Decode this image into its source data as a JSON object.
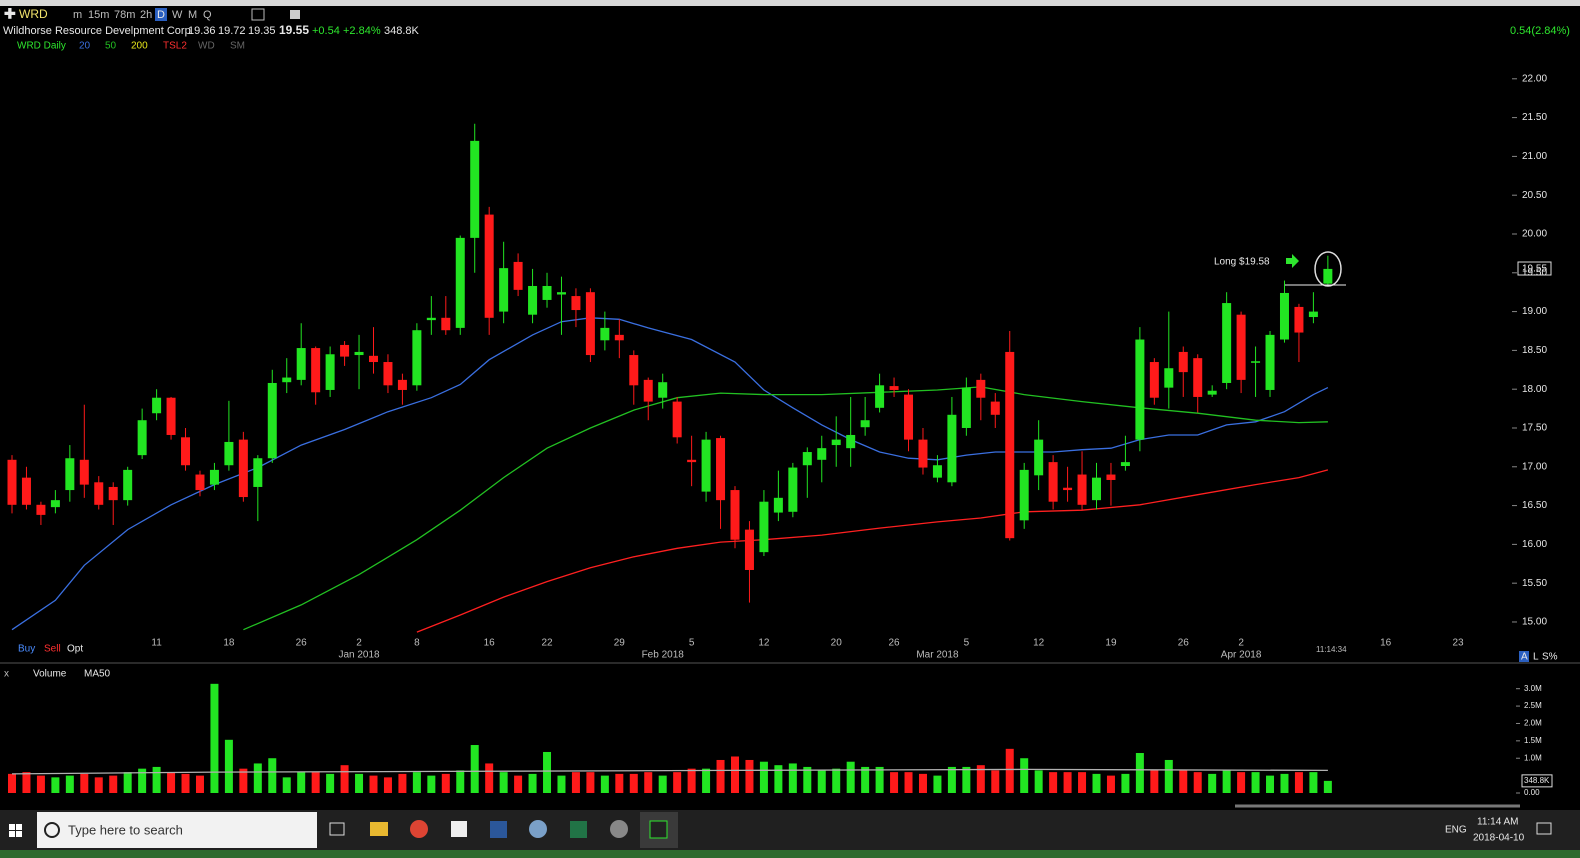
{
  "toolbar": {
    "symbol": "WRD",
    "timeframes": [
      "m",
      "15m",
      "78m",
      "2h",
      "D",
      "W",
      "M",
      "Q"
    ]
  },
  "quote": {
    "name": "Wildhorse Resource Develpment Corp",
    "change": "+0.54",
    "change_pct": "+2.84%",
    "right_change": "0.54(2.84%)"
  },
  "order_buttons": [
    "Buy",
    "Sell",
    "Opt"
  ],
  "scale_buttons": [
    "A",
    "L",
    "S%"
  ],
  "taskbar": {
    "search": "Type here to search",
    "language": "ENG",
    "time": "11:14 AM",
    "date": "2018-04-10"
  },
  "chart_data": [
    {
      "type": "candlestick",
      "title": "WRD Daily",
      "up_color": "#22e522",
      "down_color": "#ff1a1a",
      "indicators": [
        "TSL2",
        "WD",
        "SM"
      ],
      "annotation": "Long $19.58",
      "time_label": "11:14:34",
      "categories": [
        null,
        null,
        null,
        null,
        null,
        null,
        null,
        null,
        null,
        null,
        "11",
        null,
        null,
        null,
        null,
        "18",
        null,
        null,
        null,
        null,
        "26",
        null,
        null,
        null,
        "2",
        null,
        null,
        null,
        "8",
        null,
        null,
        null,
        null,
        "16",
        null,
        null,
        null,
        "22",
        null,
        null,
        null,
        null,
        "29",
        null,
        null,
        null,
        null,
        "5",
        null,
        null,
        null,
        null,
        "12",
        null,
        null,
        null,
        null,
        "20",
        null,
        null,
        null,
        "26",
        null,
        null,
        null,
        null,
        "5",
        null,
        null,
        null,
        null,
        "12",
        null,
        null,
        null,
        null,
        "19",
        null,
        null,
        null,
        null,
        "26",
        null,
        null,
        null,
        "2",
        null,
        null,
        null,
        null,
        null,
        null,
        null,
        null,
        null,
        "16",
        null,
        null,
        null,
        null,
        "23"
      ],
      "month_labels": [
        null,
        null,
        null,
        null,
        null,
        null,
        null,
        null,
        null,
        null,
        null,
        null,
        null,
        null,
        null,
        null,
        null,
        null,
        null,
        null,
        null,
        null,
        null,
        null,
        "Jan 2018",
        null,
        null,
        null,
        null,
        null,
        null,
        null,
        null,
        null,
        null,
        null,
        null,
        null,
        null,
        null,
        null,
        null,
        null,
        null,
        null,
        "Feb 2018",
        null,
        null,
        null,
        null,
        null,
        null,
        null,
        null,
        null,
        null,
        null,
        null,
        null,
        null,
        null,
        null,
        null,
        null,
        "Mar 2018",
        null,
        null,
        null,
        null,
        null,
        null,
        null,
        null,
        null,
        null,
        null,
        null,
        null,
        null,
        null,
        null,
        null,
        null,
        null,
        null,
        "Apr 2018",
        null,
        null,
        null,
        null,
        null,
        null,
        null,
        null,
        null,
        null,
        null,
        null,
        null,
        null,
        null
      ],
      "open": [
        17.09,
        16.86,
        16.51,
        16.48,
        16.7,
        17.09,
        16.8,
        16.74,
        16.57,
        17.15,
        17.69,
        17.89,
        17.38,
        16.9,
        16.77,
        17.02,
        17.35,
        16.74,
        17.11,
        18.09,
        18.12,
        18.53,
        17.99,
        18.57,
        18.44,
        18.43,
        18.35,
        18.12,
        18.05,
        18.89,
        18.92,
        18.79,
        19.95,
        20.25,
        19.0,
        19.64,
        18.96,
        19.15,
        19.22,
        19.2,
        19.25,
        18.63,
        18.7,
        18.44,
        18.12,
        17.89,
        17.84,
        17.09,
        16.68,
        17.37,
        16.7,
        16.19,
        15.9,
        16.41,
        16.42,
        17.02,
        17.09,
        17.28,
        17.24,
        17.51,
        17.76,
        18.04,
        17.93,
        17.35,
        16.86,
        16.8,
        17.5,
        18.12,
        17.84,
        18.48,
        16.31,
        16.89,
        17.06,
        16.73,
        16.9,
        16.57,
        16.9,
        17.01,
        17.35,
        18.35,
        18.02,
        18.48,
        18.4,
        17.93,
        18.08,
        18.96,
        18.34,
        17.99,
        18.64,
        19.06,
        18.93,
        19.36,
        null,
        null,
        null,
        null,
        null,
        null,
        null,
        null,
        null
      ],
      "high": [
        17.15,
        17.0,
        16.55,
        16.7,
        17.28,
        17.8,
        16.88,
        16.8,
        17.0,
        17.75,
        18.0,
        17.9,
        17.5,
        16.95,
        17.05,
        17.85,
        17.45,
        17.15,
        18.25,
        18.4,
        18.85,
        18.55,
        18.55,
        18.62,
        18.7,
        18.8,
        18.45,
        18.2,
        18.85,
        19.2,
        19.2,
        19.98,
        21.42,
        20.35,
        19.9,
        19.75,
        19.55,
        19.5,
        19.45,
        19.3,
        19.3,
        19.0,
        18.9,
        18.5,
        18.15,
        18.2,
        17.9,
        17.4,
        17.45,
        17.4,
        16.75,
        16.3,
        16.7,
        16.95,
        17.05,
        17.25,
        17.4,
        17.65,
        17.9,
        17.9,
        18.2,
        18.15,
        18.0,
        17.5,
        17.15,
        17.9,
        18.15,
        18.2,
        17.95,
        18.75,
        17.05,
        17.6,
        17.15,
        17.0,
        17.2,
        17.05,
        17.05,
        17.4,
        18.8,
        18.4,
        19.0,
        18.55,
        18.45,
        18.05,
        19.25,
        19.0,
        18.55,
        18.75,
        19.4,
        19.1,
        19.25,
        19.72,
        null,
        null,
        null,
        null,
        null,
        null,
        null,
        null,
        null
      ],
      "low": [
        16.4,
        16.45,
        16.25,
        16.4,
        16.55,
        16.6,
        16.45,
        16.25,
        16.5,
        17.1,
        17.6,
        17.35,
        16.95,
        16.62,
        16.7,
        16.95,
        16.55,
        16.3,
        17.05,
        17.95,
        18.05,
        17.8,
        17.9,
        18.3,
        18.0,
        18.2,
        17.95,
        17.8,
        17.98,
        18.7,
        18.7,
        18.7,
        19.5,
        18.7,
        18.85,
        19.2,
        18.85,
        19.05,
        18.7,
        18.8,
        18.35,
        18.5,
        18.4,
        17.8,
        17.6,
        17.75,
        17.3,
        16.75,
        16.55,
        16.2,
        15.95,
        15.25,
        15.85,
        16.3,
        16.35,
        16.6,
        16.8,
        17.0,
        17.0,
        17.4,
        17.7,
        17.9,
        17.2,
        16.9,
        16.8,
        16.75,
        17.4,
        17.6,
        17.5,
        16.05,
        16.2,
        16.7,
        16.45,
        16.55,
        16.45,
        16.45,
        16.5,
        16.95,
        17.2,
        17.8,
        17.75,
        17.9,
        17.7,
        17.9,
        18.0,
        17.95,
        17.9,
        17.9,
        18.6,
        18.35,
        18.85,
        19.35,
        null,
        null,
        null,
        null,
        null,
        null,
        null,
        null,
        null
      ],
      "close": [
        16.51,
        16.51,
        16.38,
        16.57,
        17.11,
        16.77,
        16.51,
        16.57,
        16.96,
        17.6,
        17.89,
        17.41,
        17.02,
        16.7,
        16.96,
        17.32,
        16.61,
        17.11,
        18.08,
        18.15,
        18.53,
        17.96,
        18.45,
        18.42,
        18.48,
        18.35,
        18.05,
        17.99,
        18.76,
        18.92,
        18.76,
        19.95,
        21.2,
        18.92,
        19.56,
        19.28,
        19.33,
        19.33,
        19.25,
        19.02,
        18.44,
        18.79,
        18.63,
        18.05,
        17.84,
        18.09,
        17.38,
        17.06,
        17.35,
        16.57,
        16.06,
        15.67,
        16.55,
        16.6,
        16.99,
        17.19,
        17.24,
        17.35,
        17.41,
        17.6,
        18.05,
        17.99,
        17.35,
        16.99,
        17.02,
        17.67,
        18.02,
        17.89,
        17.67,
        16.08,
        16.96,
        17.35,
        16.55,
        16.7,
        16.51,
        16.86,
        16.83,
        17.06,
        18.64,
        17.89,
        18.27,
        18.22,
        17.9,
        17.98,
        19.11,
        18.12,
        18.36,
        18.7,
        19.24,
        18.73,
        19.0,
        19.55,
        null,
        null,
        null,
        null,
        null,
        null,
        null,
        null,
        null
      ],
      "ma": [
        {
          "name": "20",
          "color": "#3a6fe0",
          "x": [
            0,
            3,
            5,
            8,
            11,
            14,
            17,
            20,
            23,
            26,
            29,
            31,
            33,
            36,
            38,
            40,
            42,
            44,
            47,
            50,
            52,
            54,
            56,
            58,
            60,
            62,
            64,
            66,
            68,
            70,
            72,
            74,
            76,
            78,
            80,
            82,
            84,
            86,
            88,
            90,
            91
          ],
          "values": [
            14.9,
            15.28,
            15.73,
            16.19,
            16.51,
            16.77,
            16.99,
            17.28,
            17.48,
            17.71,
            17.89,
            18.06,
            18.38,
            18.7,
            18.87,
            18.92,
            18.9,
            18.79,
            18.64,
            18.35,
            17.99,
            17.76,
            17.54,
            17.35,
            17.19,
            17.11,
            17.09,
            17.15,
            17.19,
            17.19,
            17.19,
            17.22,
            17.24,
            17.35,
            17.41,
            17.41,
            17.54,
            17.58,
            17.71,
            17.93,
            18.02
          ]
        },
        {
          "name": "50",
          "color": "#22c022",
          "x": [
            16,
            20,
            24,
            28,
            31,
            34,
            37,
            40,
            43,
            46,
            49,
            52,
            56,
            60,
            64,
            67,
            70,
            74,
            78,
            82,
            86,
            89,
            91
          ],
          "values": [
            14.9,
            15.22,
            15.61,
            16.06,
            16.44,
            16.86,
            17.24,
            17.5,
            17.73,
            17.89,
            17.95,
            17.93,
            17.93,
            17.96,
            17.99,
            18.03,
            17.93,
            17.84,
            17.76,
            17.69,
            17.6,
            17.57,
            17.58
          ]
        },
        {
          "name": "200",
          "color": "#e8e81a",
          "line_color": "#ff2020",
          "x": [
            28,
            31,
            34,
            37,
            40,
            43,
            46,
            49,
            52,
            56,
            60,
            64,
            67,
            70,
            74,
            78,
            82,
            86,
            89,
            91
          ],
          "values": [
            14.87,
            15.09,
            15.32,
            15.52,
            15.7,
            15.84,
            15.95,
            16.03,
            16.06,
            16.12,
            16.21,
            16.29,
            16.34,
            16.42,
            16.44,
            16.51,
            16.64,
            16.77,
            16.86,
            16.96
          ]
        }
      ],
      "ylim": [
        14.51,
        22.5
      ],
      "yticks": [
        {
          "value": 15,
          "label": "15.00"
        },
        {
          "value": 15.5,
          "label": "15.50"
        },
        {
          "value": 16,
          "label": "16.00"
        },
        {
          "value": 16.5,
          "label": "16.50"
        },
        {
          "value": 17,
          "label": "17.00"
        },
        {
          "value": 17.5,
          "label": "17.50"
        },
        {
          "value": 18,
          "label": "18.00"
        },
        {
          "value": 18.5,
          "label": "18.50"
        },
        {
          "value": 19,
          "label": "19.00"
        },
        {
          "value": 19.5,
          "label": "19.50"
        },
        {
          "value": 20,
          "label": "20.00"
        },
        {
          "value": 20.5,
          "label": "20.50"
        },
        {
          "value": 21,
          "label": "21.00"
        },
        {
          "value": 21.5,
          "label": "21.50"
        },
        {
          "value": 22,
          "label": "22.00"
        }
      ]
    },
    {
      "type": "bar",
      "title": "Volume",
      "up_color": "#22e522",
      "down_color": "#ff1a1a",
      "values": [
        0.55,
        0.6,
        0.5,
        0.45,
        0.5,
        0.55,
        0.45,
        0.5,
        0.6,
        0.7,
        0.75,
        0.6,
        0.55,
        0.5,
        3.14,
        1.53,
        0.7,
        0.85,
        1.0,
        0.45,
        0.6,
        0.6,
        0.55,
        0.8,
        0.55,
        0.5,
        0.45,
        0.55,
        0.6,
        0.5,
        0.55,
        0.65,
        1.38,
        0.85,
        0.6,
        0.5,
        0.55,
        1.18,
        0.5,
        0.6,
        0.6,
        0.5,
        0.55,
        0.55,
        0.6,
        0.5,
        0.6,
        0.7,
        0.7,
        0.95,
        1.05,
        0.95,
        0.9,
        0.8,
        0.85,
        0.75,
        0.65,
        0.7,
        0.9,
        0.75,
        0.75,
        0.6,
        0.6,
        0.55,
        0.5,
        0.75,
        0.75,
        0.8,
        0.65,
        1.27,
        1.0,
        0.65,
        0.6,
        0.6,
        0.6,
        0.55,
        0.5,
        0.55,
        1.15,
        0.65,
        0.95,
        0.65,
        0.6,
        0.55,
        0.65,
        0.6,
        0.6,
        0.5,
        0.55,
        0.6,
        0.6,
        0.3488,
        null,
        null,
        null,
        null,
        null,
        null,
        null,
        null,
        null
      ],
      "value_labels": [
        null,
        null,
        null,
        null,
        null,
        null,
        null,
        null,
        null,
        null,
        null,
        null,
        null,
        null,
        null,
        null,
        null,
        null,
        null,
        null,
        null,
        null,
        null,
        null,
        null,
        null,
        null,
        null,
        null,
        null,
        null,
        null,
        null,
        null,
        null,
        null,
        null,
        null,
        null,
        null,
        null,
        null,
        null,
        null,
        null,
        null,
        null,
        null,
        null,
        null,
        null,
        null,
        null,
        null,
        null,
        null,
        null,
        null,
        null,
        null,
        null,
        null,
        null,
        null,
        null,
        null,
        null,
        null,
        null,
        null,
        null,
        null,
        null,
        null,
        null,
        null,
        null,
        null,
        null,
        null,
        null,
        null,
        null,
        null,
        null,
        null,
        null,
        null,
        null,
        null,
        null,
        "348.8K",
        null,
        null,
        null,
        null,
        null,
        null,
        null,
        null,
        null
      ],
      "ma": {
        "name": "MA50",
        "color": "#b0b0b0",
        "x": [
          0,
          14,
          30,
          50,
          70,
          91
        ],
        "values": [
          0.55,
          0.6,
          0.62,
          0.65,
          0.68,
          0.65
        ]
      },
      "ylim": [
        0,
        3.25
      ],
      "yticks": [
        {
          "value": 0,
          "label": "0.00"
        },
        {
          "value": 1,
          "label": "1.0M"
        },
        {
          "value": 1.5,
          "label": "1.5M"
        },
        {
          "value": 2,
          "label": "2.0M"
        },
        {
          "value": 2.5,
          "label": "2.5M"
        },
        {
          "value": 3,
          "label": "3.0M"
        }
      ]
    }
  ]
}
